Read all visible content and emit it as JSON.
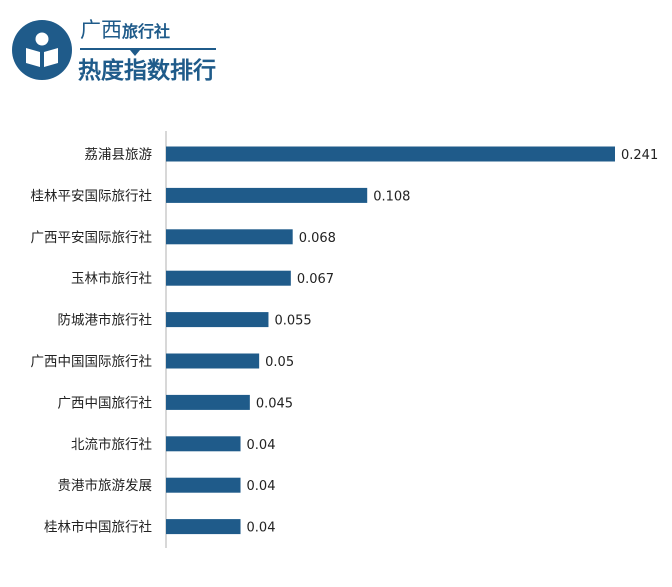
{
  "header": {
    "brand": "广西",
    "brand_sub": "旅行社",
    "title": "热度指数排行",
    "logo_icon": "book-reader-icon"
  },
  "colors": {
    "bar": "#1f5b8a",
    "axis": "#b0b0b0"
  },
  "chart_data": {
    "type": "bar",
    "orientation": "horizontal",
    "title": "",
    "xlabel": "",
    "ylabel": "",
    "xlim": [
      0,
      0.241
    ],
    "grid": false,
    "categories": [
      "荔浦县旅游",
      "桂林平安国际旅行社",
      "广西平安国际旅行社",
      "玉林市旅行社",
      "防城港市旅行社",
      "广西中国国际旅行社",
      "广西中国旅行社",
      "北流市旅行社",
      "贵港市旅游发展",
      "桂林市中国旅行社"
    ],
    "values": [
      0.241,
      0.108,
      0.068,
      0.067,
      0.055,
      0.05,
      0.045,
      0.04,
      0.04,
      0.04
    ],
    "data_labels": [
      "0.241",
      "0.108",
      "0.068",
      "0.067",
      "0.055",
      "0.05",
      "0.045",
      "0.04",
      "0.04",
      "0.04"
    ]
  }
}
